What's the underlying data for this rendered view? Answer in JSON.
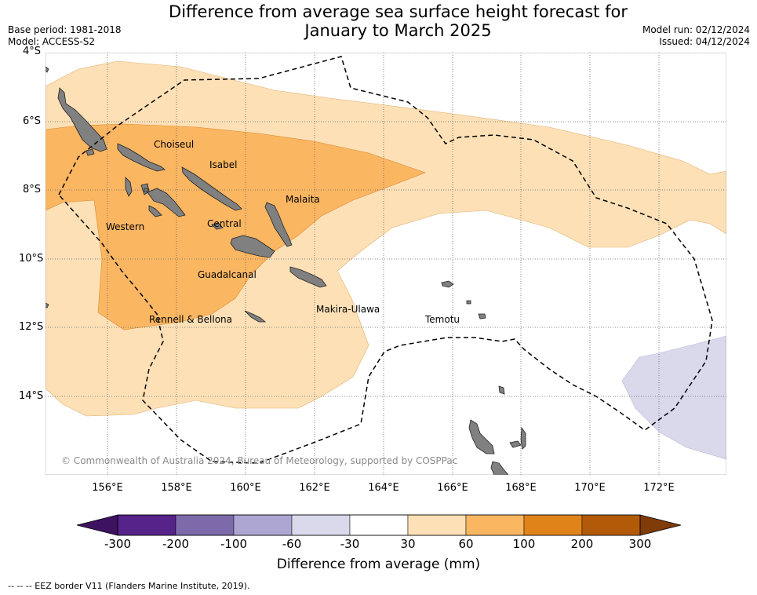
{
  "title_line1": "Difference from average sea surface height forecast for",
  "title_line2": "January to March 2025",
  "base_period": "Base period: 1981-2018",
  "model": "Model: ACCESS-S2",
  "model_run": "Model run: 02/12/2024",
  "issued": "Issued: 04/12/2024",
  "lat_labels": [
    "4°S",
    "6°S",
    "8°S",
    "10°S",
    "12°S",
    "14°S"
  ],
  "lon_labels": [
    "156°E",
    "158°E",
    "160°E",
    "162°E",
    "164°E",
    "166°E",
    "168°E",
    "170°E",
    "172°E"
  ],
  "places": {
    "choiseul": "Choiseul",
    "isabel": "Isabel",
    "malaita": "Malaita",
    "western": "Western",
    "central": "Central",
    "guadalcanal": "Guadalcanal",
    "makira_ulawa": "Makira-Ulawa",
    "rennell_bellona": "Rennell & Bellona",
    "temotu": "Temotu"
  },
  "copyright": "© Commonwealth of Australia 2024, Bureau of Meteorology, supported by COSPPac",
  "colorbar": {
    "ticks": [
      "-300",
      "-200",
      "-100",
      "-60",
      "-30",
      "30",
      "60",
      "100",
      "200",
      "300"
    ],
    "colors": [
      "#3d1260",
      "#55238a",
      "#7d6aaa",
      "#aea6d2",
      "#d9d9eb",
      "#ffffff",
      "#fde0b6",
      "#fbb662",
      "#e0841a",
      "#b35a08",
      "#7f3b08"
    ],
    "label": "Difference from average (mm)"
  },
  "legend_text": "--  --  -- EEZ border V11 (Flanders Marine Institute, 2019)."
}
